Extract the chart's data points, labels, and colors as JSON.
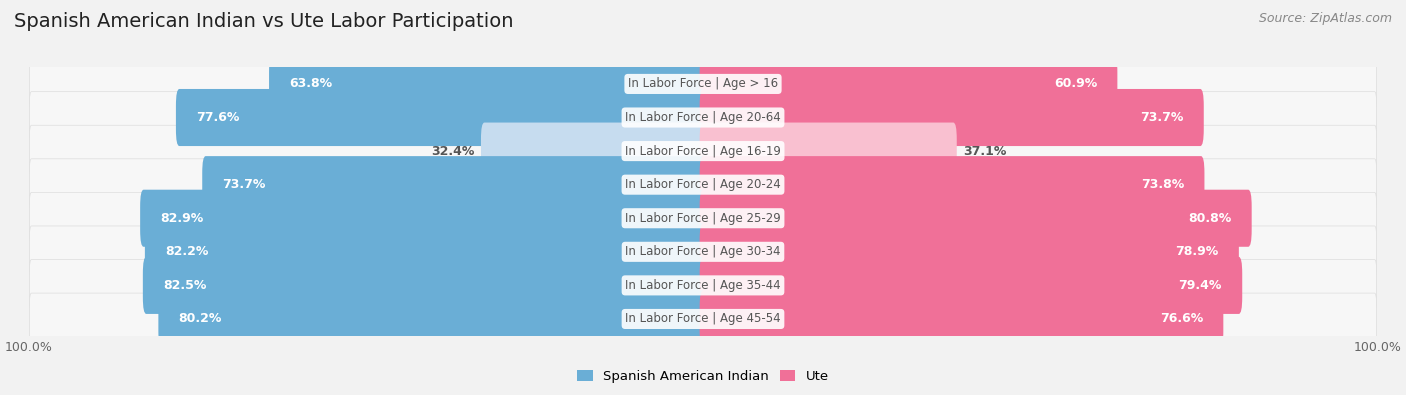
{
  "title": "Spanish American Indian vs Ute Labor Participation",
  "source": "Source: ZipAtlas.com",
  "categories": [
    "In Labor Force | Age > 16",
    "In Labor Force | Age 20-64",
    "In Labor Force | Age 16-19",
    "In Labor Force | Age 20-24",
    "In Labor Force | Age 25-29",
    "In Labor Force | Age 30-34",
    "In Labor Force | Age 35-44",
    "In Labor Force | Age 45-54"
  ],
  "left_values": [
    63.8,
    77.6,
    32.4,
    73.7,
    82.9,
    82.2,
    82.5,
    80.2
  ],
  "right_values": [
    60.9,
    73.7,
    37.1,
    73.8,
    80.8,
    78.9,
    79.4,
    76.6
  ],
  "left_color": "#6aaed6",
  "right_color": "#f07098",
  "left_color_light": "#c6dcef",
  "right_color_light": "#f9c0d0",
  "label_left": "Spanish American Indian",
  "label_right": "Ute",
  "bg_color": "#f2f2f2",
  "row_bg_color": "#ffffff",
  "row_alt_color": "#ebebeb",
  "max_val": 100.0,
  "title_fontsize": 14,
  "source_fontsize": 9,
  "tick_fontsize": 9,
  "bar_label_fontsize": 9,
  "category_fontsize": 8.5,
  "center_label_color": "#555555",
  "white_label_color": "#ffffff",
  "dark_label_color": "#555555"
}
